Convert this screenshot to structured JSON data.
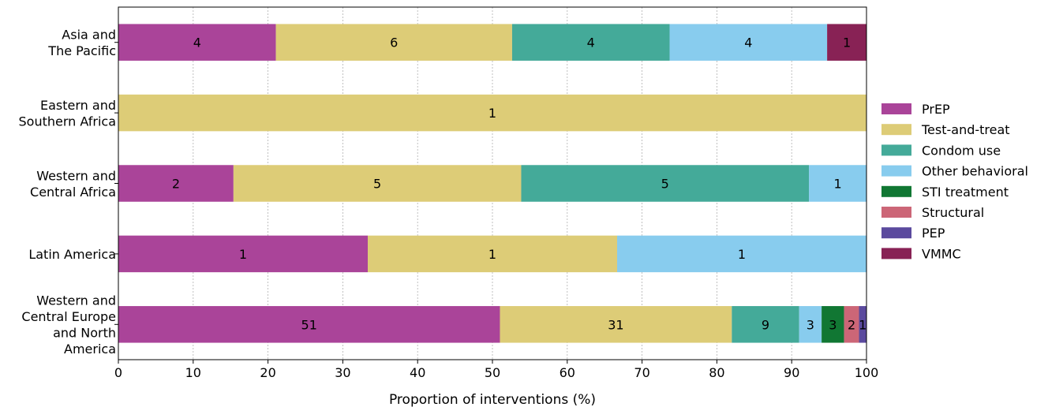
{
  "chart_data": {
    "type": "bar",
    "orientation": "horizontal",
    "stacked": true,
    "xlabel": "Proportion of interventions (%)",
    "ylabel": "",
    "xlim": [
      0,
      100
    ],
    "xticks": [
      "0",
      "10",
      "20",
      "30",
      "40",
      "50",
      "60",
      "70",
      "80",
      "90",
      "100"
    ],
    "grid": "vertical dotted",
    "legend_position": "right",
    "categories": [
      [
        "Asia and",
        "The Pacific"
      ],
      [
        "Eastern and",
        "Southern Africa"
      ],
      [
        "Western and",
        "Central Africa"
      ],
      [
        "Latin America"
      ],
      [
        "Western and",
        "Central Europe",
        "and North",
        "America"
      ]
    ],
    "series": [
      {
        "name": "PrEP",
        "color": "#aa4499",
        "counts": [
          4,
          0,
          2,
          1,
          51
        ]
      },
      {
        "name": "Test-and-treat",
        "color": "#ddcc77",
        "counts": [
          6,
          1,
          5,
          1,
          31
        ]
      },
      {
        "name": "Condom use",
        "color": "#44aa99",
        "counts": [
          4,
          0,
          5,
          0,
          9
        ]
      },
      {
        "name": "Other behavioral",
        "color": "#88ccee",
        "counts": [
          4,
          0,
          1,
          1,
          3
        ]
      },
      {
        "name": "STI treatment",
        "color": "#117733",
        "counts": [
          0,
          0,
          0,
          0,
          3
        ]
      },
      {
        "name": "Structural",
        "color": "#cc6677",
        "counts": [
          0,
          0,
          0,
          0,
          2
        ]
      },
      {
        "name": "PEP",
        "color": "#5b4a9e",
        "counts": [
          0,
          0,
          0,
          0,
          1
        ]
      },
      {
        "name": "VMMC",
        "color": "#882255",
        "counts": [
          1,
          0,
          0,
          0,
          0
        ]
      }
    ]
  }
}
